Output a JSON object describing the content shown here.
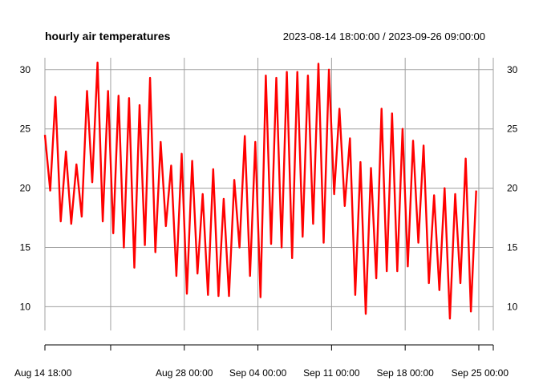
{
  "chart_data": {
    "type": "line",
    "title": "hourly air temperatures",
    "subtitle": "2023-08-14 18:00:00 / 2023-09-26 09:00:00",
    "xlabel": "",
    "ylabel": "",
    "x_start": "2023-08-14 18:00:00",
    "x_end": "2023-09-26 09:00:00",
    "ylim": [
      8,
      31
    ],
    "yticks": [
      10,
      15,
      20,
      25,
      30
    ],
    "xticks": [
      {
        "date": "2023-08-14 18:00",
        "label": "Aug 14 18:00"
      },
      {
        "date": "2023-08-21 00:00",
        "label": ""
      },
      {
        "date": "2023-08-28 00:00",
        "label": "Aug 28 00:00"
      },
      {
        "date": "2023-09-04 00:00",
        "label": "Sep 04 00:00"
      },
      {
        "date": "2023-09-11 00:00",
        "label": "Sep 11 00:00"
      },
      {
        "date": "2023-09-18 00:00",
        "label": "Sep 18 00:00"
      },
      {
        "date": "2023-09-25 00:00",
        "label": "Sep 25 00:00"
      },
      {
        "date": "2023-09-26 09:00",
        "label": ""
      }
    ],
    "grid": true,
    "line_color": "#ff0000",
    "series": [
      {
        "values_interval_hours": 12,
        "values": [
          24.5,
          19.8,
          27.7,
          17.2,
          23.1,
          17.0,
          22.0,
          17.6,
          28.2,
          20.5,
          30.6,
          17.2,
          28.2,
          16.2,
          27.8,
          15.0,
          27.6,
          13.3,
          27.0,
          15.2,
          29.3,
          14.6,
          23.9,
          16.8,
          21.9,
          12.6,
          22.9,
          11.1,
          22.3,
          12.8,
          19.5,
          11.0,
          21.6,
          10.9,
          19.1,
          10.9,
          20.7,
          15.0,
          24.4,
          12.6,
          23.9,
          10.8,
          29.5,
          15.3,
          29.3,
          15.0,
          29.8,
          14.1,
          29.8,
          15.9,
          29.5,
          17.0,
          30.5,
          15.4,
          30.0,
          19.5,
          26.7,
          18.5,
          24.2,
          11.0,
          22.2,
          9.4,
          21.7,
          12.4,
          26.7,
          13.0,
          26.3,
          13.0,
          25.0,
          13.4,
          24.0,
          15.4,
          23.6,
          12.0,
          19.4,
          11.4,
          20.0,
          9.0,
          19.5,
          12.0,
          22.5,
          9.6,
          19.8
        ]
      }
    ]
  }
}
